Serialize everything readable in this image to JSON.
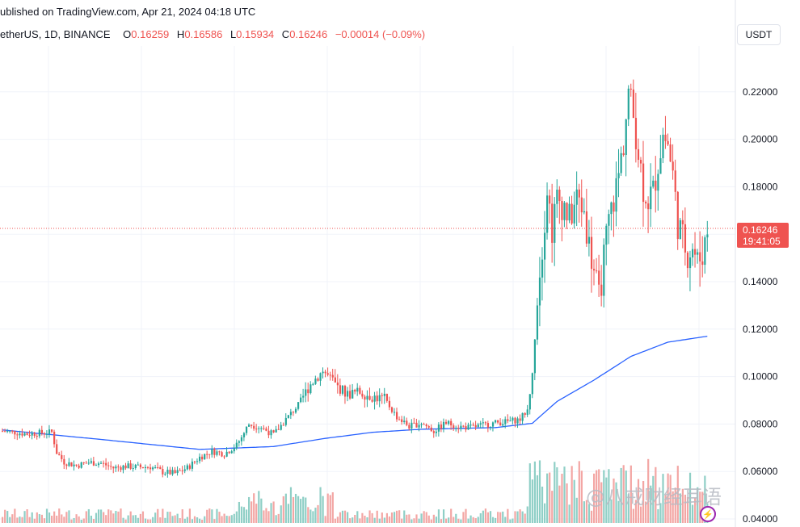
{
  "header": {
    "published": "ublished on TradingView.com, Apr 21, 2024 04:18 UTC"
  },
  "legend": {
    "symbol": "etherUS, 1D, BINANCE",
    "open_label": "O",
    "open": "0.16259",
    "high_label": "H",
    "high": "0.16586",
    "low_label": "L",
    "low": "0.15934",
    "close_label": "C",
    "close": "0.16246",
    "change": "−0.00014 (−0.09%)"
  },
  "price_scale": {
    "unit": "USDT",
    "last_price": "0.16246",
    "countdown": "19:41:05"
  },
  "watermark": "@八戒财经耳语",
  "colors": {
    "up": "#26a69a",
    "down": "#ef5350",
    "ma": "#2962ff",
    "vol_up": "#8fcfc6",
    "vol_down": "#f3a6a4",
    "grid": "#f0f3fa",
    "price_line": "#ef5350"
  },
  "chart_data": {
    "type": "candlestick",
    "interval": "1D",
    "y_range": [
      0.04,
      0.23
    ],
    "y_ticks": [
      0.04,
      0.06,
      0.08,
      0.1,
      0.12,
      0.14,
      0.16,
      0.18,
      0.2,
      0.22
    ],
    "y_tick_labels": [
      "0.04000",
      "0.06000",
      "0.08000",
      "0.10000",
      "0.12000",
      "0.14000",
      "0.16000",
      "0.18000",
      "0.20000",
      "0.22000"
    ],
    "last_price": 0.16246,
    "close_path": [
      [
        0,
        0.077
      ],
      [
        5,
        0.0765
      ],
      [
        10,
        0.0758
      ],
      [
        15,
        0.0762
      ],
      [
        20,
        0.0766
      ],
      [
        22,
        0.068
      ],
      [
        25,
        0.064
      ],
      [
        30,
        0.0625
      ],
      [
        35,
        0.0638
      ],
      [
        40,
        0.0635
      ],
      [
        45,
        0.0615
      ],
      [
        50,
        0.0622
      ],
      [
        55,
        0.0618
      ],
      [
        60,
        0.062
      ],
      [
        65,
        0.0598
      ],
      [
        70,
        0.0592
      ],
      [
        75,
        0.0615
      ],
      [
        80,
        0.066
      ],
      [
        85,
        0.0685
      ],
      [
        90,
        0.0675
      ],
      [
        95,
        0.071
      ],
      [
        100,
        0.08
      ],
      [
        105,
        0.0785
      ],
      [
        110,
        0.0755
      ],
      [
        115,
        0.082
      ],
      [
        120,
        0.088
      ],
      [
        125,
        0.097
      ],
      [
        130,
        0.1025
      ],
      [
        135,
        0.0965
      ],
      [
        140,
        0.0925
      ],
      [
        145,
        0.0935
      ],
      [
        150,
        0.0915
      ],
      [
        155,
        0.0905
      ],
      [
        160,
        0.083
      ],
      [
        165,
        0.079
      ],
      [
        170,
        0.0805
      ],
      [
        175,
        0.077
      ],
      [
        180,
        0.0805
      ],
      [
        185,
        0.079
      ],
      [
        190,
        0.0785
      ],
      [
        195,
        0.0795
      ],
      [
        200,
        0.0805
      ],
      [
        205,
        0.081
      ],
      [
        210,
        0.082
      ],
      [
        213,
        0.086
      ],
      [
        215,
        0.1
      ],
      [
        217,
        0.135
      ],
      [
        219,
        0.155
      ],
      [
        221,
        0.18
      ],
      [
        223,
        0.162
      ],
      [
        225,
        0.175
      ],
      [
        228,
        0.172
      ],
      [
        230,
        0.166
      ],
      [
        233,
        0.175
      ],
      [
        236,
        0.17
      ],
      [
        238,
        0.155
      ],
      [
        240,
        0.145
      ],
      [
        242,
        0.132
      ],
      [
        244,
        0.15
      ],
      [
        246,
        0.165
      ],
      [
        248,
        0.175
      ],
      [
        250,
        0.185
      ],
      [
        252,
        0.199
      ],
      [
        254,
        0.22
      ],
      [
        256,
        0.21
      ],
      [
        258,
        0.195
      ],
      [
        260,
        0.18
      ],
      [
        262,
        0.175
      ],
      [
        264,
        0.178
      ],
      [
        266,
        0.19
      ],
      [
        268,
        0.202
      ],
      [
        270,
        0.198
      ],
      [
        272,
        0.185
      ],
      [
        274,
        0.165
      ],
      [
        276,
        0.158
      ],
      [
        278,
        0.152
      ],
      [
        280,
        0.155
      ],
      [
        282,
        0.148
      ],
      [
        284,
        0.152
      ],
      [
        286,
        0.162
      ]
    ],
    "ma_path": [
      [
        0,
        0.0775
      ],
      [
        40,
        0.0735
      ],
      [
        80,
        0.0693
      ],
      [
        110,
        0.0705
      ],
      [
        130,
        0.0738
      ],
      [
        150,
        0.0765
      ],
      [
        170,
        0.0778
      ],
      [
        200,
        0.0785
      ],
      [
        215,
        0.0803
      ],
      [
        225,
        0.0895
      ],
      [
        240,
        0.0985
      ],
      [
        255,
        0.1085
      ],
      [
        270,
        0.1145
      ],
      [
        286,
        0.117
      ]
    ],
    "volume_range": [
      0,
      80
    ]
  }
}
